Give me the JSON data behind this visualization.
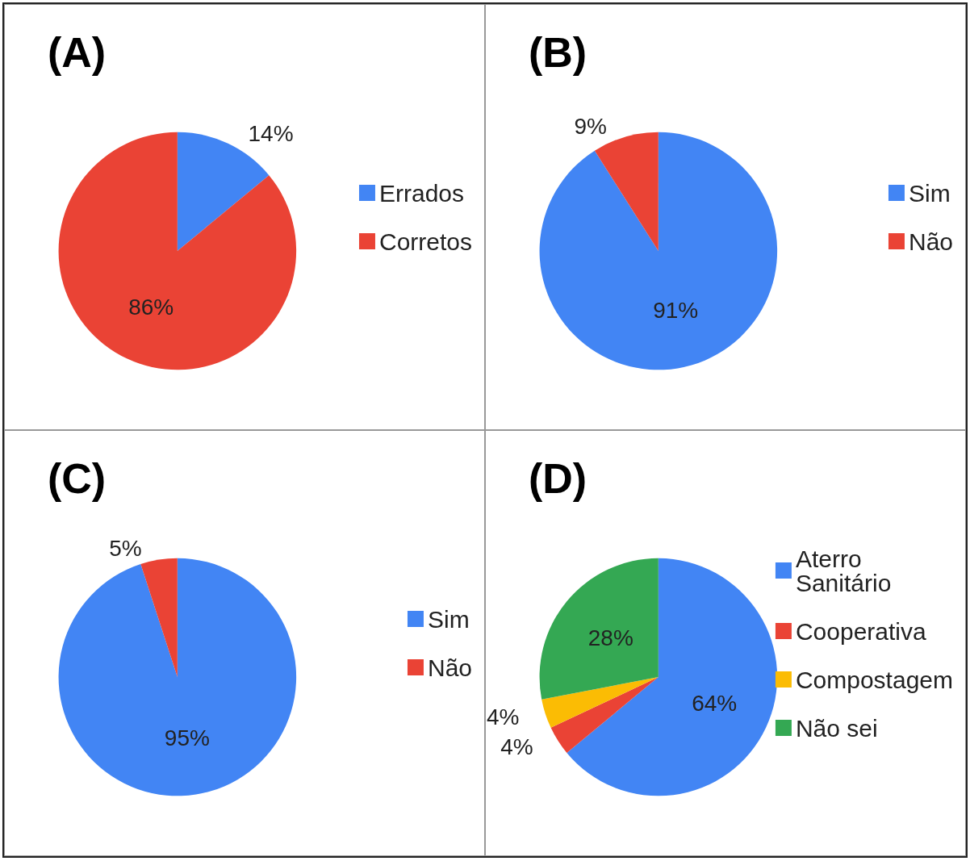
{
  "chart_data": [
    {
      "type": "pie",
      "title": "(A)",
      "categories": [
        "Errados",
        "Corretos"
      ],
      "values": [
        14,
        86
      ],
      "value_labels": [
        "14%",
        "86%"
      ],
      "colors": [
        "#4285f4",
        "#ea4335"
      ],
      "legend": "right"
    },
    {
      "type": "pie",
      "title": "(B)",
      "categories": [
        "Sim",
        "Não"
      ],
      "values": [
        91,
        9
      ],
      "value_labels": [
        "91%",
        "9%"
      ],
      "colors": [
        "#4285f4",
        "#ea4335"
      ],
      "legend": "right"
    },
    {
      "type": "pie",
      "title": "(C)",
      "categories": [
        "Sim",
        "Não"
      ],
      "values": [
        95,
        5
      ],
      "value_labels": [
        "95%",
        "5%"
      ],
      "colors": [
        "#4285f4",
        "#ea4335"
      ],
      "legend": "right"
    },
    {
      "type": "pie",
      "title": "(D)",
      "categories": [
        "Aterro Sanitário",
        "Cooperativa",
        "Compostagem",
        "Não sei"
      ],
      "values": [
        64,
        4,
        4,
        28
      ],
      "value_labels": [
        "64%",
        "4%",
        "4%",
        "28%"
      ],
      "colors": [
        "#4285f4",
        "#ea4335",
        "#fbbc04",
        "#34a853"
      ],
      "legend": "right"
    }
  ]
}
